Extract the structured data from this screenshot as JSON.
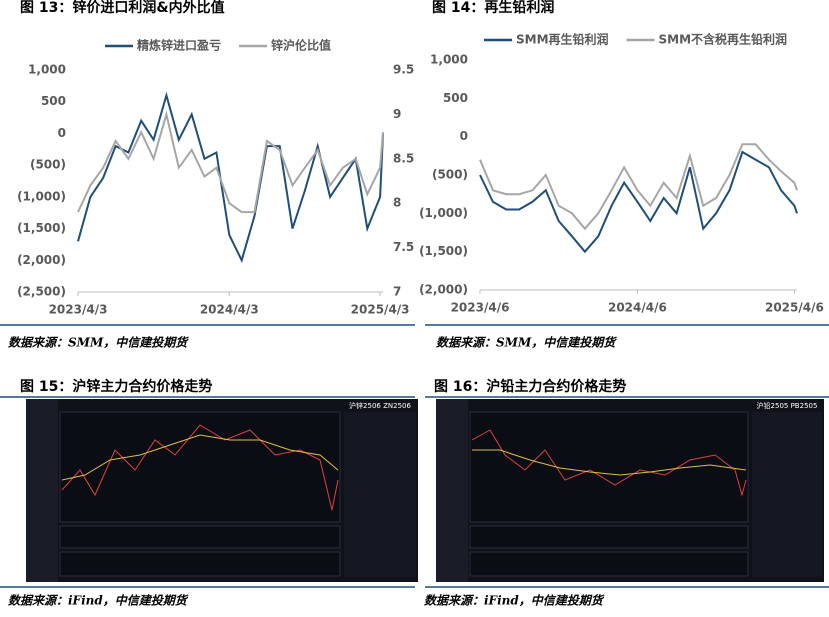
{
  "chart_data": [
    {
      "type": "line",
      "title": "图 13：锌价进口利润&内外比值",
      "source": "数据来源：SMM，中信建投期货",
      "x": [
        "2023/4/3",
        "2023/5/3",
        "2023/6/3",
        "2023/7/3",
        "2023/8/3",
        "2023/9/3",
        "2023/10/3",
        "2023/11/3",
        "2023/12/3",
        "2024/1/3",
        "2024/2/3",
        "2024/3/3",
        "2024/4/3",
        "2024/5/3",
        "2024/6/3",
        "2024/7/3",
        "2024/8/3",
        "2024/9/3",
        "2024/10/3",
        "2024/11/3",
        "2024/12/3",
        "2025/1/3",
        "2025/2/3",
        "2025/3/3",
        "2025/4/3",
        "2025/4/10"
      ],
      "xlim": [
        "2023/4/3",
        "2025/4/10"
      ],
      "xticks": [
        "2023/4/3",
        "2024/4/3",
        "2025/4/3"
      ],
      "ylim": [
        -2500,
        1000
      ],
      "yticks": [
        {
          "value": 1000,
          "label": "1,000"
        },
        500,
        0,
        {
          "value": -500,
          "label": "(500)"
        },
        {
          "value": -1000,
          "label": "(1,000)"
        },
        {
          "value": -1500,
          "label": "(1,500)"
        },
        {
          "value": -2000,
          "label": "(2,000)"
        },
        {
          "value": -2500,
          "label": "(2,500)"
        }
      ],
      "y2lim": [
        7,
        9.5
      ],
      "y2ticks": [
        7,
        7.5,
        8,
        8.5,
        9,
        9.5
      ],
      "negative_label_color": "#c00000",
      "legend": "top",
      "series": [
        {
          "name": "精炼锌进口盈亏",
          "color": "#1f4e79",
          "values": [
            -1700,
            -1000,
            -700,
            -200,
            -300,
            200,
            -100,
            600,
            -100,
            300,
            -400,
            -300,
            -1600,
            -2000,
            -1300,
            -200,
            -200,
            -1500,
            -900,
            -200,
            -1000,
            -700,
            -400,
            -1500,
            -1000,
            0
          ]
        },
        {
          "name": "锌沪伦比值",
          "color": "#a6a6a6",
          "axis": "y2",
          "values": [
            7.9,
            8.2,
            8.4,
            8.7,
            8.5,
            8.8,
            8.5,
            9.0,
            8.4,
            8.6,
            8.3,
            8.4,
            8.0,
            7.9,
            7.9,
            8.7,
            8.6,
            8.2,
            8.4,
            8.6,
            8.2,
            8.4,
            8.5,
            8.1,
            8.4,
            8.8
          ]
        }
      ]
    },
    {
      "type": "line",
      "title": "图 14：再生铅利润",
      "source": "数据来源：SMM，中信建投期货",
      "x": [
        "2023/4/6",
        "2023/5/6",
        "2023/6/6",
        "2023/7/6",
        "2023/8/6",
        "2023/9/6",
        "2023/10/6",
        "2023/11/6",
        "2023/12/6",
        "2024/1/6",
        "2024/2/6",
        "2024/3/6",
        "2024/4/6",
        "2024/5/6",
        "2024/6/6",
        "2024/7/6",
        "2024/8/6",
        "2024/9/6",
        "2024/10/6",
        "2024/11/6",
        "2024/12/6",
        "2025/1/6",
        "2025/2/6",
        "2025/3/6",
        "2025/4/6",
        "2025/4/12"
      ],
      "xlim": [
        "2023/4/6",
        "2025/4/12"
      ],
      "xticks": [
        "2023/4/6",
        "2024/4/6",
        "2025/4/6"
      ],
      "ylim": [
        -2000,
        1000
      ],
      "yticks": [
        {
          "value": 1000,
          "label": "1,000"
        },
        500,
        0,
        {
          "value": -500,
          "label": "(500)"
        },
        {
          "value": -1000,
          "label": "(1,000)"
        },
        {
          "value": -1500,
          "label": "(1,500)"
        },
        {
          "value": -2000,
          "label": "(2,000)"
        }
      ],
      "negative_label_color": "#c00000",
      "legend": "top",
      "series": [
        {
          "name": "SMM再生铅利润",
          "color": "#1f4e79",
          "values": [
            -500,
            -850,
            -950,
            -950,
            -850,
            -700,
            -1100,
            -1300,
            -1500,
            -1300,
            -900,
            -600,
            -850,
            -1100,
            -800,
            -1000,
            -400,
            -1200,
            -1000,
            -700,
            -200,
            -300,
            -400,
            -700,
            -900,
            -1000
          ]
        },
        {
          "name": "SMM不含税再生铅利润",
          "color": "#a6a6a6",
          "values": [
            -300,
            -700,
            -750,
            -750,
            -700,
            -500,
            -900,
            -1000,
            -1200,
            -1000,
            -700,
            -400,
            -700,
            -900,
            -600,
            -800,
            -250,
            -900,
            -800,
            -500,
            -100,
            -100,
            -300,
            -450,
            -600,
            -700
          ]
        }
      ]
    }
  ],
  "figures": [
    {
      "title": "图 15：沪锌主力合约价格走势",
      "screen_label": "沪锌2506 ZN2506",
      "source": "数据来源：iFind，中信建投期货"
    },
    {
      "title": "图 16：沪铅主力合约价格走势",
      "screen_label": "沪铅2505 PB2505",
      "source": "数据来源：iFind，中信建投期货"
    }
  ]
}
